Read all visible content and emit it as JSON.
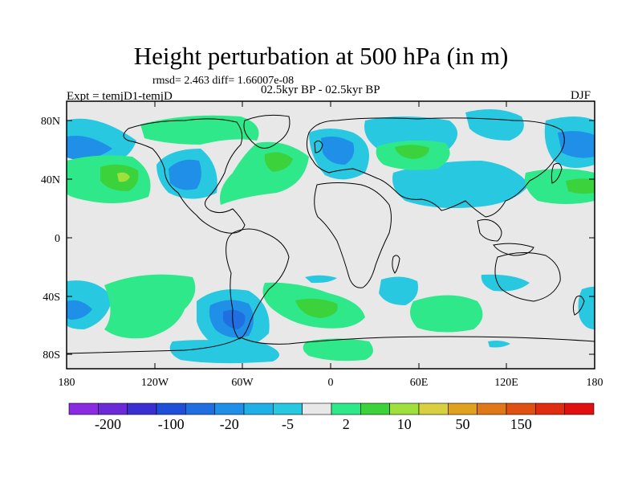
{
  "title": "Height perturbation at 500 hPa (in m)",
  "stats": "rmsd= 2.463 diff= 1.66007e-08",
  "experiment": "Expt = temjD1-temjD",
  "period": "02.5kyr BP - 02.5kyr BP",
  "season": "DJF",
  "lat_labels": [
    "80N",
    "40N",
    "0",
    "40S",
    "80S"
  ],
  "lon_labels": [
    "180",
    "120W",
    "60W",
    "0",
    "60E",
    "120E",
    "180"
  ],
  "colorbar": {
    "colors": [
      "#8a2be2",
      "#6a2ad8",
      "#3a2fd0",
      "#1f4fd8",
      "#1f6fe0",
      "#1f8fe8",
      "#1fb0e8",
      "#28c8e0",
      "#e8e8e8",
      "#2ee88a",
      "#3cd23c",
      "#a0e03c",
      "#d8d040",
      "#e0a020",
      "#e07818",
      "#e05010",
      "#e02c10",
      "#e01010"
    ],
    "labels": [
      "-200",
      "-100",
      "-20",
      "-5",
      "2",
      "10",
      "50",
      "150"
    ]
  }
}
